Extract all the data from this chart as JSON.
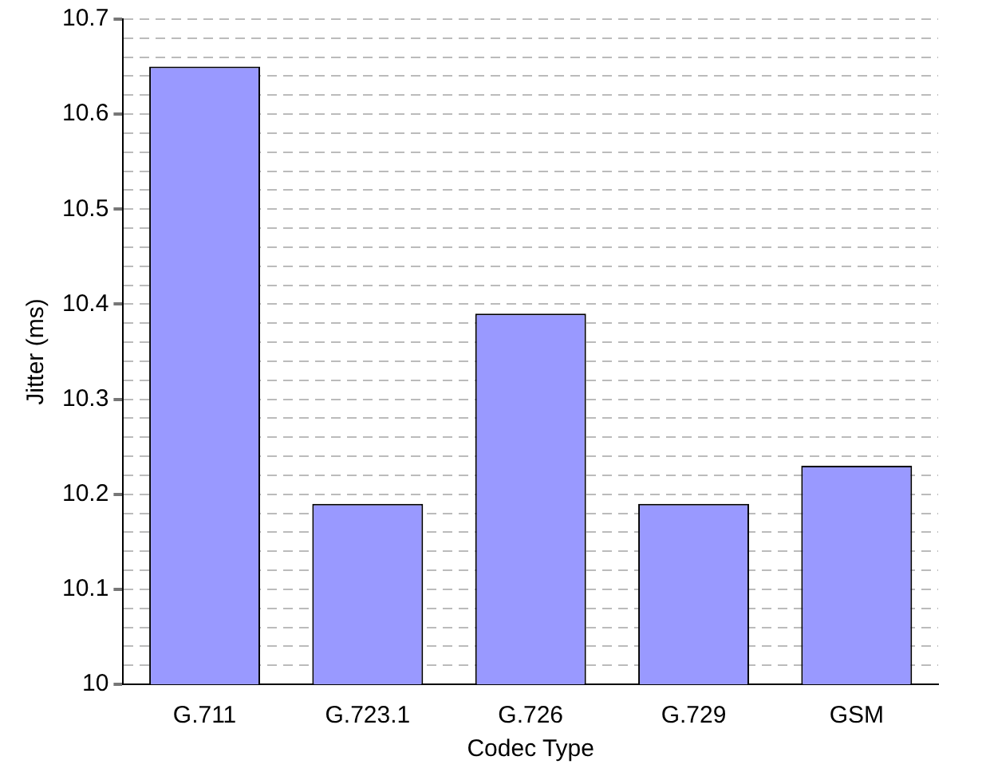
{
  "chart_data": {
    "type": "bar",
    "xlabel": "Codec Type",
    "ylabel": "Jitter (ms)",
    "categories": [
      "G.711",
      "G.723.1",
      "G.726",
      "G.729",
      "GSM"
    ],
    "values": [
      10.65,
      10.19,
      10.39,
      10.19,
      10.23
    ],
    "color": "#9999ff",
    "ylim": [
      10,
      10.7
    ],
    "yticks": [
      10,
      {
        "value": 10.02,
        "label": null
      },
      {
        "value": 10.04,
        "label": null
      },
      {
        "value": 10.06,
        "label": null
      },
      {
        "value": 10.08,
        "label": null
      },
      10.1,
      {
        "value": 10.12,
        "label": null
      },
      {
        "value": 10.14,
        "label": null
      },
      {
        "value": 10.16,
        "label": null
      },
      {
        "value": 10.18,
        "label": null
      },
      10.2,
      {
        "value": 10.22,
        "label": null
      },
      {
        "value": 10.24,
        "label": null
      },
      {
        "value": 10.26,
        "label": null
      },
      {
        "value": 10.28,
        "label": null
      },
      10.3,
      {
        "value": 10.32,
        "label": null
      },
      {
        "value": 10.34,
        "label": null
      },
      {
        "value": 10.36,
        "label": null
      },
      {
        "value": 10.38,
        "label": null
      },
      10.4,
      {
        "value": 10.42,
        "label": null
      },
      {
        "value": 10.44,
        "label": null
      },
      {
        "value": 10.46,
        "label": null
      },
      {
        "value": 10.48,
        "label": null
      },
      10.5,
      {
        "value": 10.52,
        "label": null
      },
      {
        "value": 10.54,
        "label": null
      },
      {
        "value": 10.56,
        "label": null
      },
      {
        "value": 10.58,
        "label": null
      },
      10.6,
      {
        "value": 10.62,
        "label": null
      },
      {
        "value": 10.64,
        "label": null
      },
      {
        "value": 10.66,
        "label": null
      },
      {
        "value": 10.68,
        "label": null
      },
      10.7
    ],
    "grid": "y",
    "legend": false
  }
}
